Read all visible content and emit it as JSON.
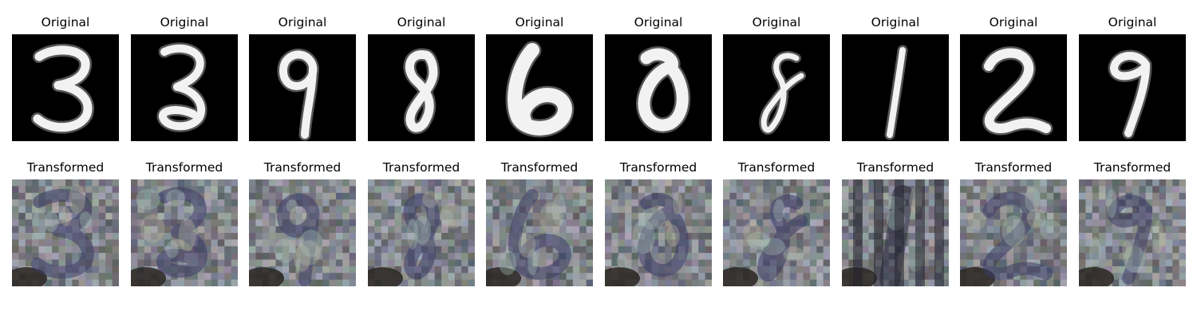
{
  "rows": {
    "original": {
      "title": "Original",
      "digits": [
        "3",
        "3",
        "9",
        "8",
        "6",
        "0",
        "8",
        "1",
        "2",
        "9"
      ]
    },
    "transformed": {
      "title": "Transformed",
      "note_colors": [
        "#6f6f8a",
        "#8a8676",
        "#3a3a55",
        "#b8b8a0"
      ]
    }
  }
}
